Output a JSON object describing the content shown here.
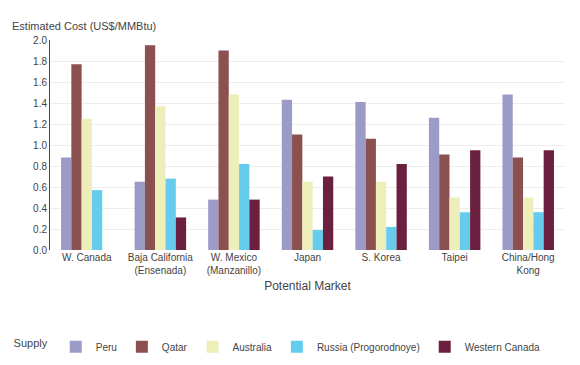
{
  "chart_data": {
    "type": "bar",
    "categories": [
      "W. Canada",
      "Baja California\n(Ensenada)",
      "W. Mexico\n(Manzanillo)",
      "Japan",
      "S. Korea",
      "Taipei",
      "China/Hong\nKong"
    ],
    "series": [
      {
        "name": "Peru",
        "color": "#9B9BC8",
        "values": [
          0.88,
          0.65,
          0.48,
          1.43,
          1.41,
          1.26,
          1.48
        ]
      },
      {
        "name": "Qatar",
        "color": "#8B5050",
        "values": [
          1.77,
          1.95,
          1.9,
          1.1,
          1.06,
          0.91,
          0.88
        ]
      },
      {
        "name": "Australia",
        "color": "#EEEEBB",
        "values": [
          1.25,
          1.37,
          1.48,
          0.65,
          0.65,
          0.5,
          0.5
        ]
      },
      {
        "name": "Russia (Progorodnoye)",
        "color": "#66CCEE",
        "values": [
          0.57,
          0.68,
          0.82,
          0.19,
          0.22,
          0.36,
          0.36
        ]
      },
      {
        "name": "Western Canada",
        "color": "#6B2040",
        "values": [
          0.0,
          0.31,
          0.48,
          0.7,
          0.82,
          0.95,
          0.95
        ]
      }
    ],
    "xlabel": "Potential Market",
    "ylabel": "Estimated Cost (US$/MMBtu)",
    "legend_title": "Supply",
    "ylim": [
      0.0,
      2.0
    ],
    "yticks": [
      {
        "value": 0.0,
        "label": "0.0"
      },
      0.2,
      0.4,
      0.6,
      0.8,
      {
        "value": 1.0,
        "label": "1.0"
      },
      1.2,
      1.4,
      1.6,
      1.8,
      {
        "value": 2.0,
        "label": "2.0"
      }
    ],
    "grid": true,
    "legend": "bottom"
  }
}
